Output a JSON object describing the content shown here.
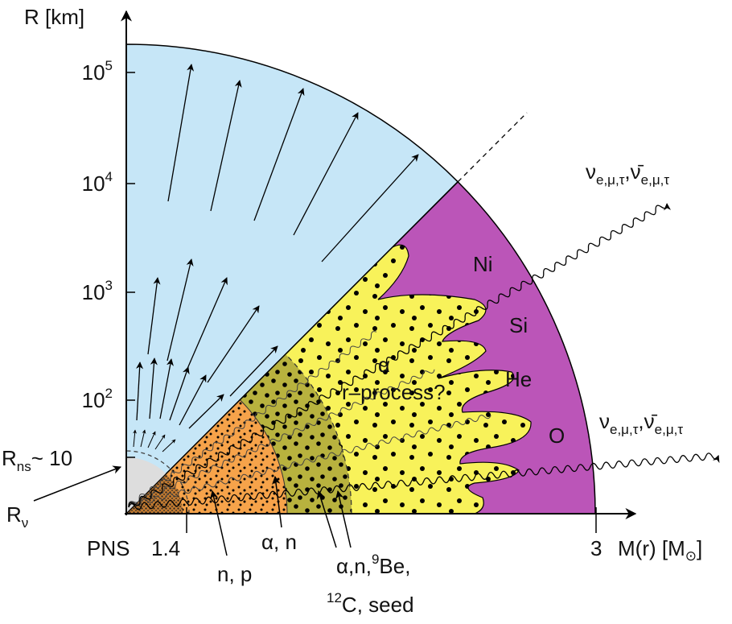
{
  "axes": {
    "y_label": "R [km]",
    "x_label": {
      "text": "M(r) [M",
      "sub": "⊙",
      "end": "]"
    }
  },
  "y_ticks": [
    {
      "base": "10",
      "exp": "5"
    },
    {
      "base": "10",
      "exp": "4"
    },
    {
      "base": "10",
      "exp": "3"
    },
    {
      "base": "10",
      "exp": "2"
    }
  ],
  "r_ns": {
    "text": "R",
    "sub": "ns",
    "suffix": "~ 10"
  },
  "r_nu": {
    "text": "R",
    "sub": "ν"
  },
  "x_labels": {
    "pns": "PNS",
    "mass_inner": "1.4",
    "mass_outer": "3"
  },
  "zone_labels": {
    "np": "n, p",
    "alpha_n": "α, n"
  },
  "seed_label": {
    "line1_pre": "α,n,",
    "line1_sup": "9",
    "line1_post": "Be,",
    "line2_sup": "12",
    "line2_post": "C, seed"
  },
  "shell_labels": [
    "Ni",
    "Si",
    "He",
    "O"
  ],
  "region_labels": {
    "alpha": "α",
    "process": "r–process?"
  },
  "neutrino_labels": [
    {
      "nu": "ν",
      "flavors": "e,μ,τ",
      "sep": ",",
      "antinu": "ν̄",
      "antiflavors": "e,μ,τ"
    },
    {
      "nu": "ν",
      "flavors": "e,μ,τ",
      "sep": ",",
      "antinu": "ν̄",
      "antiflavors": "e,μ,τ"
    }
  ]
}
